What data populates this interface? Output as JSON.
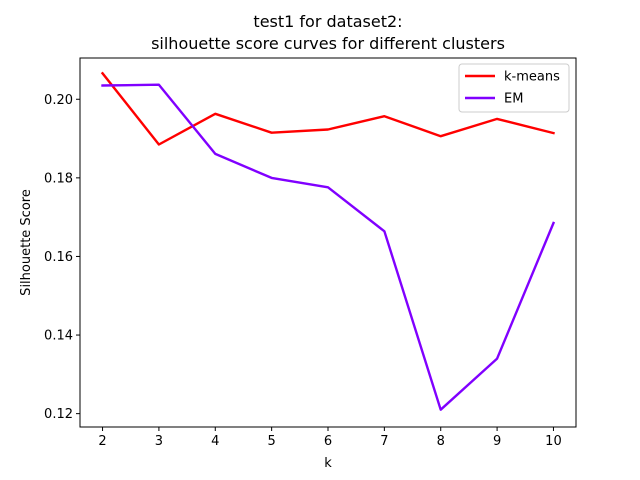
{
  "chart_data": {
    "type": "line",
    "title": "test1 for dataset2:",
    "subtitle": "silhouette score curves for different clusters",
    "xlabel": "k",
    "ylabel": "Silhouette Score",
    "x": [
      2,
      3,
      4,
      5,
      6,
      7,
      8,
      9,
      10
    ],
    "xlim": [
      1.6,
      10.4
    ],
    "ylim": [
      0.1166,
      0.2105
    ],
    "xticks": [
      "2",
      "3",
      "4",
      "5",
      "6",
      "7",
      "8",
      "9",
      "10"
    ],
    "yticks": [
      0.12,
      0.14,
      0.16,
      0.18,
      0.2
    ],
    "ytick_labels": [
      "0.12",
      "0.14",
      "0.16",
      "0.18",
      "0.20"
    ],
    "grid": false,
    "legend_position": "top-right",
    "series": [
      {
        "name": "k-means",
        "color": "#ff0000",
        "values": [
          0.2066,
          0.1885,
          0.1963,
          0.1915,
          0.1923,
          0.1957,
          0.1906,
          0.195,
          0.1914
        ]
      },
      {
        "name": "EM",
        "color": "#8000ff",
        "values": [
          0.2035,
          0.2037,
          0.1861,
          0.18,
          0.1776,
          0.1664,
          0.121,
          0.134,
          0.1685
        ]
      }
    ]
  }
}
